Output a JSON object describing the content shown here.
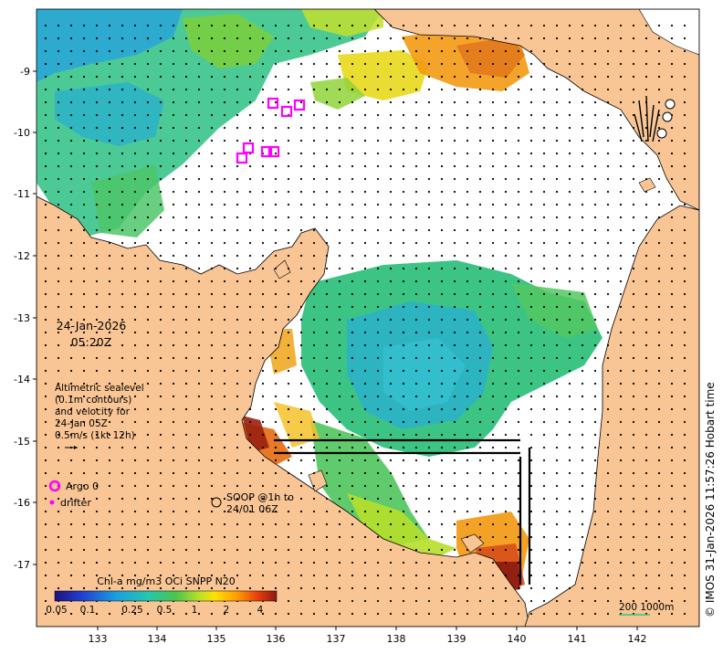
{
  "colors": {
    "land": "#f9c594",
    "sea": "#ffffff",
    "coast": "#000000",
    "argo": "#ff00ff",
    "chl_low": "#2aa7d8",
    "chl_mid": "#35c283",
    "chl_high": "#ff7a00",
    "chl_max": "#8b1a10"
  },
  "map": {
    "date": "24-Jan-2026",
    "time": "05:20Z",
    "legend_text": [
      "Altimetric sealevel",
      "(0.1m contours)",
      "and velocity for",
      "24-Jan 05Z",
      "0.5m/s (1kt 12h)"
    ],
    "argo_label": "Argo 0",
    "drifter_label": "drifter",
    "soop_label": [
      "SOOP @1h to",
      "24/01 06Z"
    ],
    "colorbar_title": "Chl-a mg/m3 OCi SNPP N20",
    "colorbar_ticks": [
      "0.05",
      "0.1",
      "0.25",
      "0.5",
      "1",
      "2",
      "4"
    ],
    "scale_label": "200  1000m",
    "credit": "© IMOS 31-Jan-2026 11:57:26 Hobart time",
    "x_ticks": [
      "133",
      "134",
      "135",
      "136",
      "137",
      "138",
      "139",
      "140",
      "141",
      "142"
    ],
    "y_ticks": [
      "-9",
      "-10",
      "-11",
      "-12",
      "-13",
      "-14",
      "-15",
      "-16",
      "-17"
    ],
    "argo_icon": "square-marker-icon",
    "soop_icon": "circle-marker-icon"
  }
}
